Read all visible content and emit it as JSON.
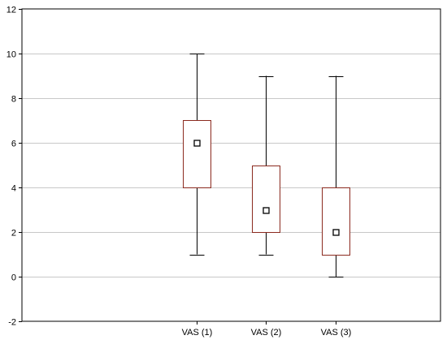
{
  "chart_data": {
    "type": "box",
    "title": "",
    "xlabel": "",
    "ylabel": "",
    "ylim": [
      -2,
      12
    ],
    "yticks": [
      -2,
      0,
      2,
      4,
      6,
      8,
      10,
      12
    ],
    "grid": true,
    "categories": [
      "VAS (1)",
      "VAS (2)",
      "VAS (3)"
    ],
    "boxes": [
      {
        "category": "VAS (1)",
        "min": 1,
        "q1": 4,
        "median": 6,
        "q3": 7,
        "max": 10
      },
      {
        "category": "VAS (2)",
        "min": 1,
        "q1": 2,
        "median": 3,
        "q3": 5,
        "max": 9
      },
      {
        "category": "VAS (3)",
        "min": 0,
        "q1": 1,
        "median": 2,
        "q3": 4,
        "max": 9
      }
    ],
    "colors": {
      "box_edge": "#8b2a1f",
      "whisker": "#000000",
      "median_marker": "#000000",
      "grid": "#c8c8c8",
      "frame": "#000000"
    }
  }
}
